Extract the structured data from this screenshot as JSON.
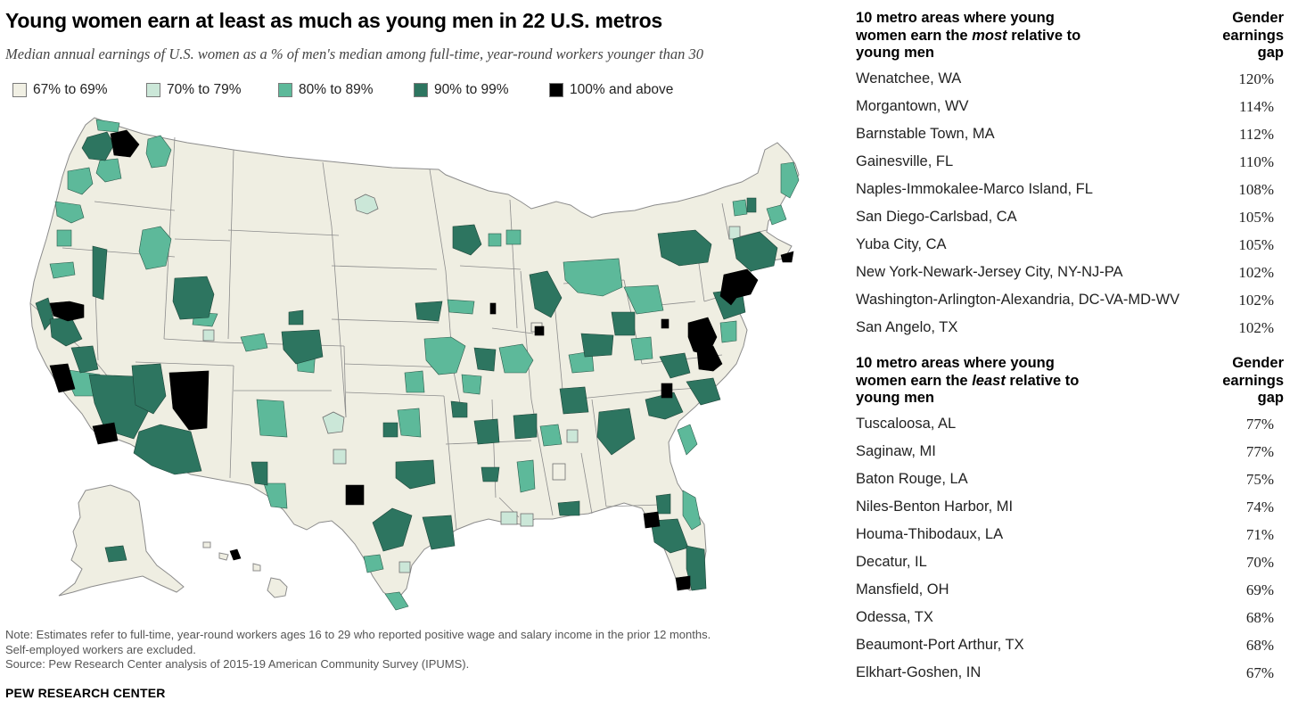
{
  "title": "Young women earn at least as much as young men in 22 U.S. metros",
  "subtitle": "Median annual earnings of U.S. women as a % of men's median among full-time, year-round workers younger than 30",
  "colors": {
    "c67": "#f1f0e4",
    "c70": "#cbe7d8",
    "c80": "#5db99a",
    "c90": "#2d7560",
    "c100": "#000000",
    "base": "#efeee2",
    "border": "#8c8c8c"
  },
  "legend": [
    {
      "label": "67% to 69%",
      "color": "#f1f0e4"
    },
    {
      "label": "70% to 79%",
      "color": "#cbe7d8"
    },
    {
      "label": "80% to 89%",
      "color": "#5db99a"
    },
    {
      "label": "90% to 99%",
      "color": "#2d7560"
    },
    {
      "label": "100% and above",
      "color": "#000000"
    }
  ],
  "most": {
    "heading_pre": "10 metro areas where young women earn the ",
    "heading_em": "most",
    "heading_post": " relative to young men",
    "col_heading": "Gender earnings gap",
    "rows": [
      {
        "metro": "Wenatchee, WA",
        "value": "120%"
      },
      {
        "metro": "Morgantown, WV",
        "value": "114%"
      },
      {
        "metro": "Barnstable Town, MA",
        "value": "112%"
      },
      {
        "metro": "Gainesville, FL",
        "value": "110%"
      },
      {
        "metro": "Naples-Immokalee-Marco Island, FL",
        "value": "108%"
      },
      {
        "metro": "San Diego-Carlsbad, CA",
        "value": "105%"
      },
      {
        "metro": "Yuba City, CA",
        "value": "105%"
      },
      {
        "metro": "New York-Newark-Jersey City, NY-NJ-PA",
        "value": "102%"
      },
      {
        "metro": "Washington-Arlington-Alexandria, DC-VA-MD-WV",
        "value": "102%"
      },
      {
        "metro": "San Angelo, TX",
        "value": "102%"
      }
    ]
  },
  "least": {
    "heading_pre": "10 metro areas where young women earn the ",
    "heading_em": "least",
    "heading_post": " relative to young men",
    "col_heading": "Gender earnings gap",
    "rows": [
      {
        "metro": "Tuscaloosa, AL",
        "value": "77%"
      },
      {
        "metro": "Saginaw, MI",
        "value": "77%"
      },
      {
        "metro": "Baton Rouge, LA",
        "value": "75%"
      },
      {
        "metro": "Niles-Benton Harbor, MI",
        "value": "74%"
      },
      {
        "metro": "Houma-Thibodaux, LA",
        "value": "71%"
      },
      {
        "metro": "Decatur, IL",
        "value": "70%"
      },
      {
        "metro": "Mansfield, OH",
        "value": "69%"
      },
      {
        "metro": "Odessa, TX",
        "value": "68%"
      },
      {
        "metro": "Beaumont-Port Arthur, TX",
        "value": "68%"
      },
      {
        "metro": "Elkhart-Goshen, IN",
        "value": "67%"
      }
    ]
  },
  "note_line1": "Note: Estimates refer to full-time, year-round workers ages 16 to 29 who reported positive wage and salary income in the prior 12 months.",
  "note_line2": "Self-employed workers are excluded.",
  "source": "Source: Pew Research Center analysis of 2015-19 American Community Survey (IPUMS).",
  "brand": "PEW RESEARCH CENTER"
}
